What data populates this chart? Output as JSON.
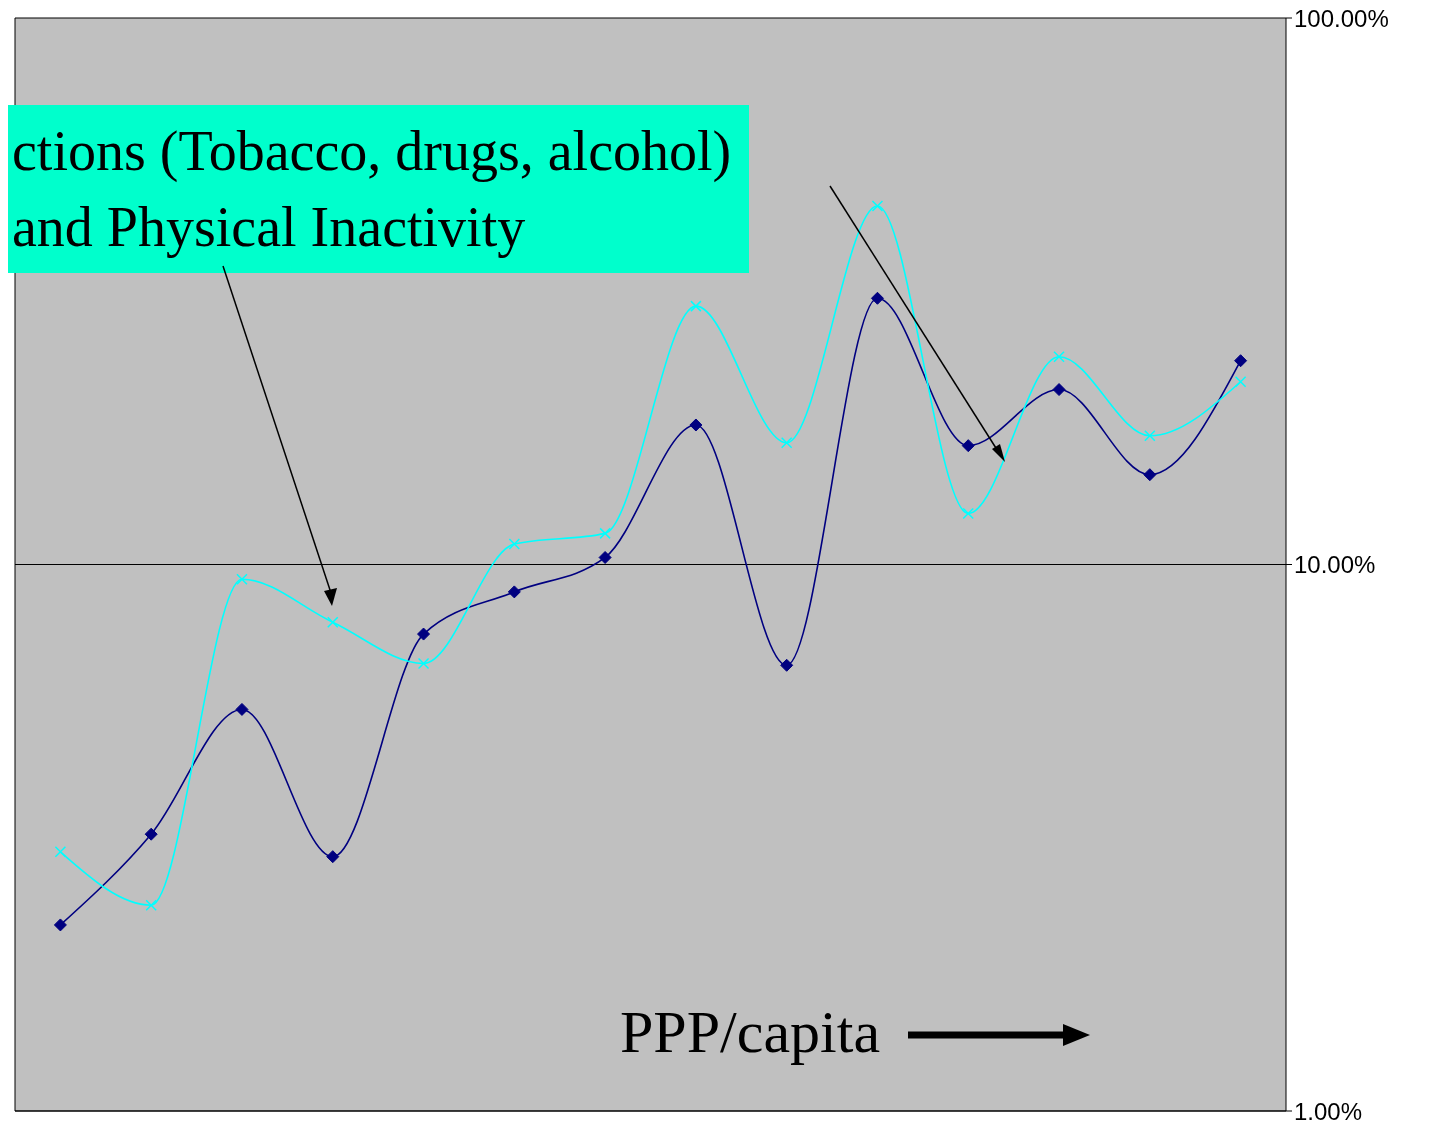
{
  "chart_data": {
    "type": "line",
    "categories": [
      null,
      null,
      null,
      null,
      null,
      null,
      null,
      null,
      null,
      null,
      null,
      null,
      null,
      null
    ],
    "series": [
      {
        "color": "#000080",
        "marker": "diamond",
        "values": [
          2.19,
          3.21,
          5.43,
          2.92,
          7.46,
          8.91,
          10.3,
          18.0,
          6.54,
          30.7,
          16.5,
          20.9,
          14.6,
          23.6
        ]
      },
      {
        "color": "#00ffff",
        "marker": "cross",
        "values": [
          2.98,
          2.38,
          9.4,
          7.84,
          6.59,
          10.9,
          11.4,
          29.7,
          16.7,
          45.3,
          12.4,
          24.0,
          17.2,
          21.6
        ]
      }
    ],
    "log": true,
    "ylim": [
      1,
      100
    ],
    "yticks": [
      {
        "value": 1,
        "label": "1.00%"
      },
      {
        "value": 10,
        "label": "10.00%"
      },
      {
        "value": 100,
        "label": "100.00%"
      }
    ],
    "grid": "y",
    "tick_labels": "y",
    "annotations": [
      "ctions (Tobacco, drugs, alcohol)",
      "and Physical Inactivity",
      "PPP/capita"
    ]
  }
}
